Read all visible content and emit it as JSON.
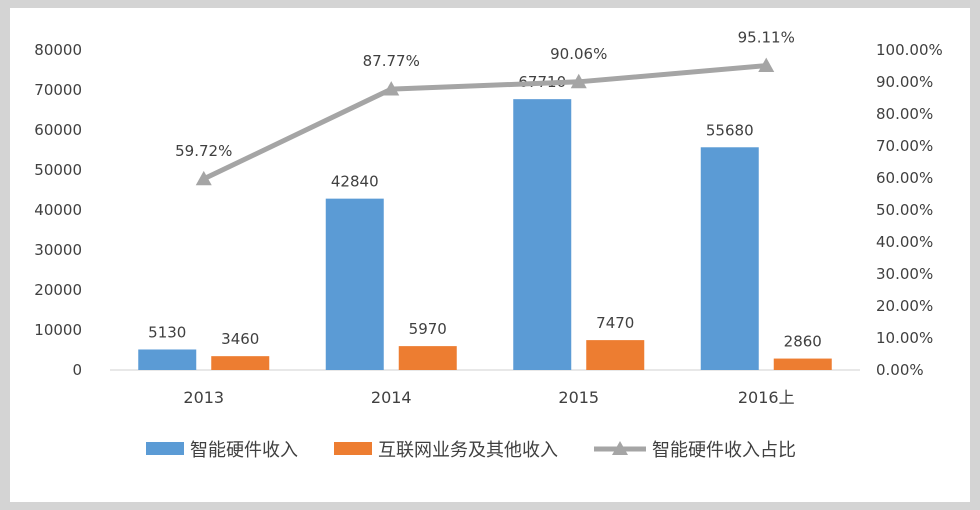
{
  "chart_data": {
    "type": "bar",
    "title": "",
    "xlabel": "",
    "ylabel": "",
    "categories": [
      "2013",
      "2014",
      "2015",
      "2016上"
    ],
    "series": [
      {
        "name": "智能硬件收入",
        "type": "bar",
        "axis": "left",
        "color": "#5b9bd5",
        "values": [
          5130,
          42840,
          67710,
          55680
        ],
        "labels": [
          "5130",
          "42840",
          "67710",
          "55680"
        ]
      },
      {
        "name": "互联网业务及其他收入",
        "type": "bar",
        "axis": "left",
        "color": "#ed7d31",
        "values": [
          3460,
          5970,
          7470,
          2860
        ],
        "labels": [
          "3460",
          "5970",
          "7470",
          "2860"
        ]
      },
      {
        "name": "智能硬件收入占比",
        "type": "line",
        "marker": "triangle",
        "axis": "right",
        "color": "#a5a5a5",
        "values": [
          59.72,
          87.77,
          90.06,
          95.11
        ],
        "labels": [
          "59.72%",
          "87.77%",
          "90.06%",
          "95.11%"
        ]
      }
    ],
    "ylim": [
      0,
      80000
    ],
    "yticks": [
      "0",
      "10000",
      "20000",
      "30000",
      "40000",
      "50000",
      "60000",
      "70000",
      "80000"
    ],
    "y2lim": [
      0,
      100
    ],
    "y2ticks": [
      "0.00%",
      "10.00%",
      "20.00%",
      "30.00%",
      "40.00%",
      "50.00%",
      "60.00%",
      "70.00%",
      "80.00%",
      "90.00%",
      "100.00%"
    ],
    "grid": false,
    "legend_position": "bottom"
  }
}
